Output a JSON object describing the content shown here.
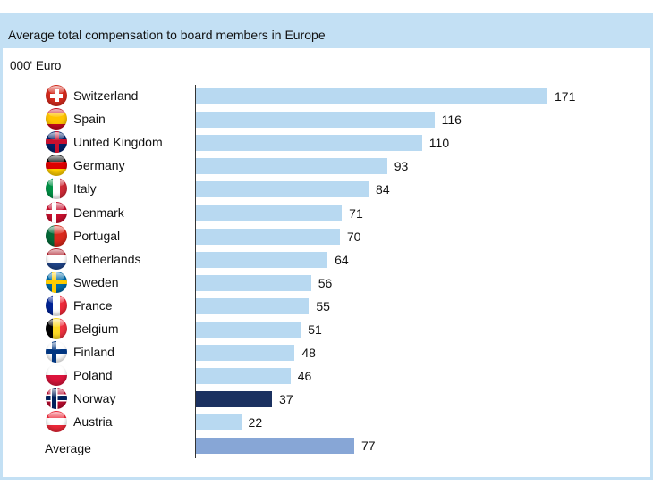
{
  "chart_data": {
    "type": "bar",
    "orientation": "horizontal",
    "title": "Average total compensation to board members in Europe",
    "unit_label": "000' Euro",
    "xlabel": "",
    "ylabel": "",
    "xlim": [
      0,
      171
    ],
    "grid": false,
    "categories": [
      "Switzerland",
      "Spain",
      "United Kingdom",
      "Germany",
      "Italy",
      "Denmark",
      "Portugal",
      "Netherlands",
      "Sweden",
      "France",
      "Belgium",
      "Finland",
      "Poland",
      "Norway",
      "Austria",
      "Average"
    ],
    "values": [
      171,
      116,
      110,
      93,
      84,
      71,
      70,
      64,
      56,
      55,
      51,
      48,
      46,
      37,
      22,
      77
    ],
    "flags": [
      "switzerland-flag",
      "spain-flag",
      "uk-flag",
      "germany-flag",
      "italy-flag",
      "denmark-flag",
      "portugal-flag",
      "netherlands-flag",
      "sweden-flag",
      "france-flag",
      "belgium-flag",
      "finland-flag",
      "poland-flag",
      "norway-flag",
      "austria-flag",
      null
    ],
    "highlight": {
      "Norway": "#1b3160",
      "Average": "#87a6d6"
    },
    "default_color": "#b8d9f1"
  },
  "colors": {
    "frame": "#c3e0f4"
  }
}
